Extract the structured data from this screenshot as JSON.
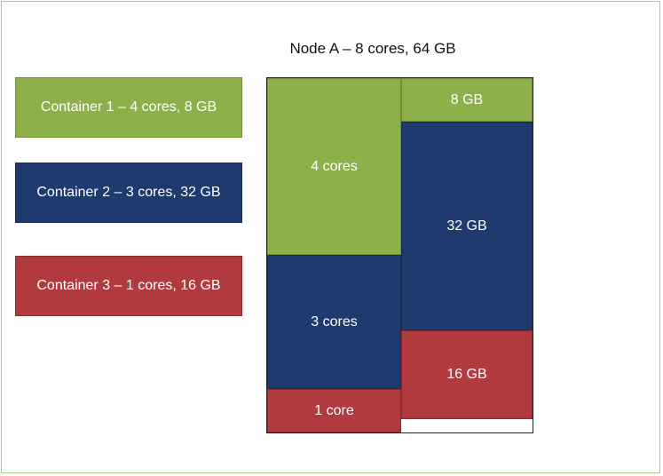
{
  "node": {
    "title": "Node A – 8 cores, 64 GB",
    "cores_column": [
      {
        "label": "4 cores",
        "container": "Container 1",
        "color": "#8db04a"
      },
      {
        "label": "3 cores",
        "container": "Container 2",
        "color": "#1e3a6f"
      },
      {
        "label": "1 core",
        "container": "Container 3",
        "color": "#b13a3e"
      }
    ],
    "memory_column": [
      {
        "label": "8 GB",
        "container": "Container 1",
        "color": "#8db04a"
      },
      {
        "label": "32 GB",
        "container": "Container 2",
        "color": "#1e3a6f"
      },
      {
        "label": "16 GB",
        "container": "Container 3",
        "color": "#b13a3e"
      }
    ]
  },
  "containers": [
    {
      "label": "Container 1 – 4 cores, 8 GB",
      "color": "#8db04a"
    },
    {
      "label": "Container 2 – 3 cores, 32 GB",
      "color": "#1e3a6f"
    },
    {
      "label": "Container 3 – 1 cores, 16 GB",
      "color": "#b13a3e"
    }
  ],
  "colors": {
    "frame_border": "#9fd08a",
    "green": "#8db04a",
    "blue": "#1e3a6f",
    "red": "#b13a3e"
  }
}
